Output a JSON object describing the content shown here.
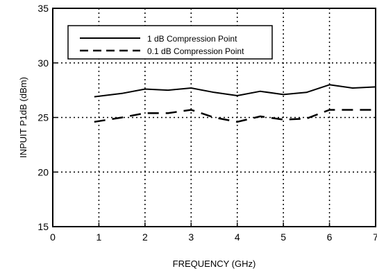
{
  "chart_data": {
    "type": "line",
    "xlabel": "FREQUENCY (GHz)",
    "ylabel": "INPUIT P1dB (dBm)",
    "xlim": [
      0,
      7
    ],
    "ylim": [
      15,
      35
    ],
    "xticks": [
      "0",
      "1",
      "2",
      "3",
      "4",
      "5",
      "6",
      "7"
    ],
    "yticks": [
      "15",
      "20",
      "25",
      "30",
      "35"
    ],
    "grid": true,
    "legend_position": "top-left",
    "series": [
      {
        "name": "1 dB Compression Point",
        "style": "solid",
        "color": "#000000",
        "x": [
          0.9,
          1.5,
          2.0,
          2.5,
          3.0,
          3.5,
          4.0,
          4.5,
          5.0,
          5.5,
          6.0,
          6.5,
          7.0
        ],
        "y": [
          26.9,
          27.2,
          27.6,
          27.5,
          27.7,
          27.3,
          27.0,
          27.4,
          27.1,
          27.3,
          28.0,
          27.7,
          27.8
        ]
      },
      {
        "name": "0.1 dB Compression Point",
        "style": "dashed",
        "color": "#000000",
        "x": [
          0.9,
          1.5,
          2.0,
          2.5,
          3.0,
          3.5,
          4.0,
          4.5,
          5.0,
          5.5,
          6.0,
          6.5,
          7.0
        ],
        "y": [
          24.6,
          25.0,
          25.4,
          25.4,
          25.7,
          25.0,
          24.6,
          25.1,
          24.8,
          24.9,
          25.7,
          25.7,
          25.7
        ]
      }
    ]
  }
}
